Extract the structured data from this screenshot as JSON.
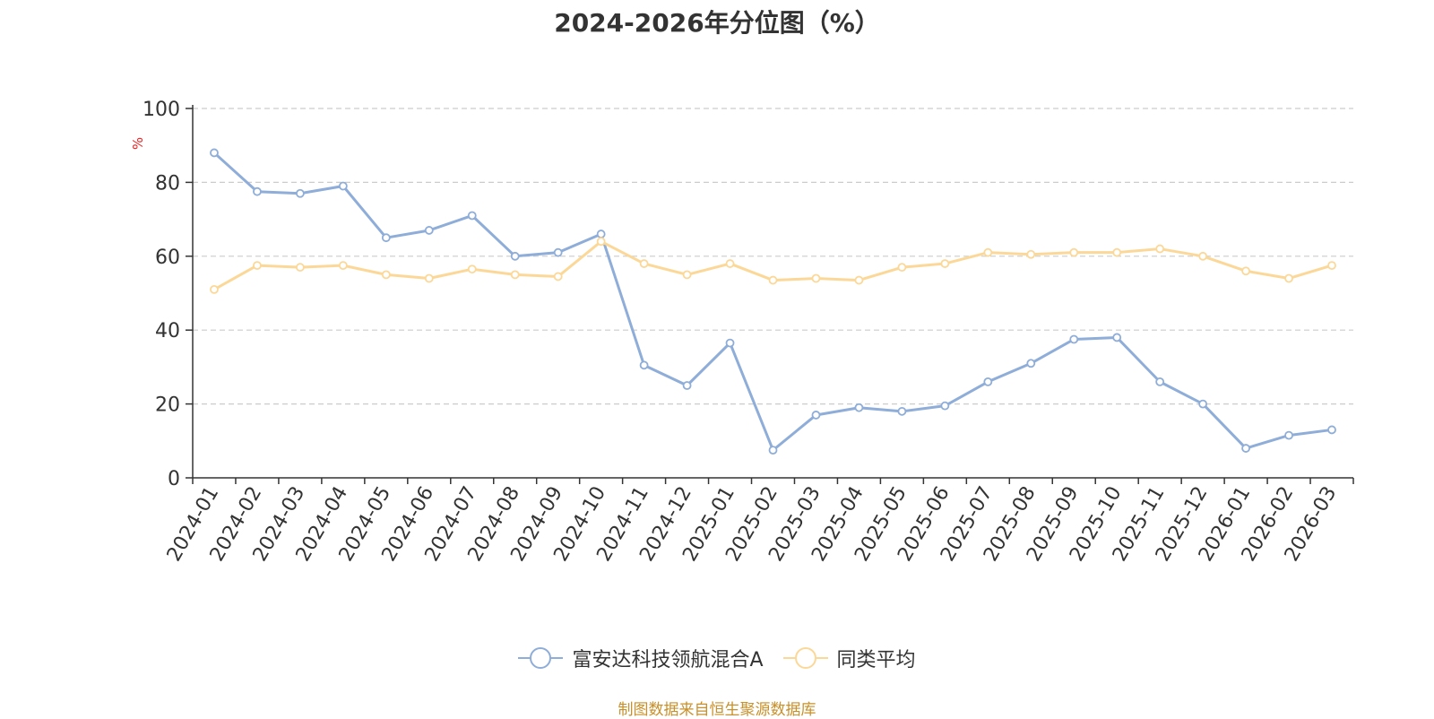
{
  "chart_data": {
    "type": "line",
    "title": "2024-2026年分位图（%）",
    "ylabel": "%",
    "xlabel": "",
    "ylim": [
      0,
      100
    ],
    "yticks": [
      0,
      20,
      40,
      60,
      80,
      100
    ],
    "grid": true,
    "legend_position": "bottom",
    "categories": [
      "2024-01",
      "2024-02",
      "2024-03",
      "2024-04",
      "2024-05",
      "2024-06",
      "2024-07",
      "2024-08",
      "2024-09",
      "2024-10",
      "2024-11",
      "2024-12",
      "2025-01",
      "2025-02",
      "2025-03",
      "2025-04",
      "2025-05",
      "2025-06",
      "2025-07",
      "2025-08",
      "2025-09",
      "2025-10",
      "2025-11",
      "2025-12",
      "2026-01",
      "2026-02",
      "2026-03"
    ],
    "series": [
      {
        "name": "富安达科技领航混合A",
        "color": "#8eadd8",
        "values": [
          88,
          77.5,
          77,
          79,
          65,
          67,
          71,
          60,
          61,
          66,
          30.5,
          25,
          36.5,
          7.5,
          17,
          19,
          18,
          19.5,
          26,
          31,
          37.5,
          38,
          26,
          20,
          8,
          11.5,
          13
        ]
      },
      {
        "name": "同类平均",
        "color": "#fcd898",
        "values": [
          51,
          57.5,
          57,
          57.5,
          55,
          54,
          56.5,
          55,
          54.5,
          64,
          58,
          55,
          58,
          53.5,
          54,
          53.5,
          57,
          58,
          61,
          60.5,
          61,
          61,
          62,
          60,
          56,
          54,
          57.5
        ]
      }
    ]
  },
  "footer": {
    "source_text": "制图数据来自恒生聚源数据库"
  }
}
